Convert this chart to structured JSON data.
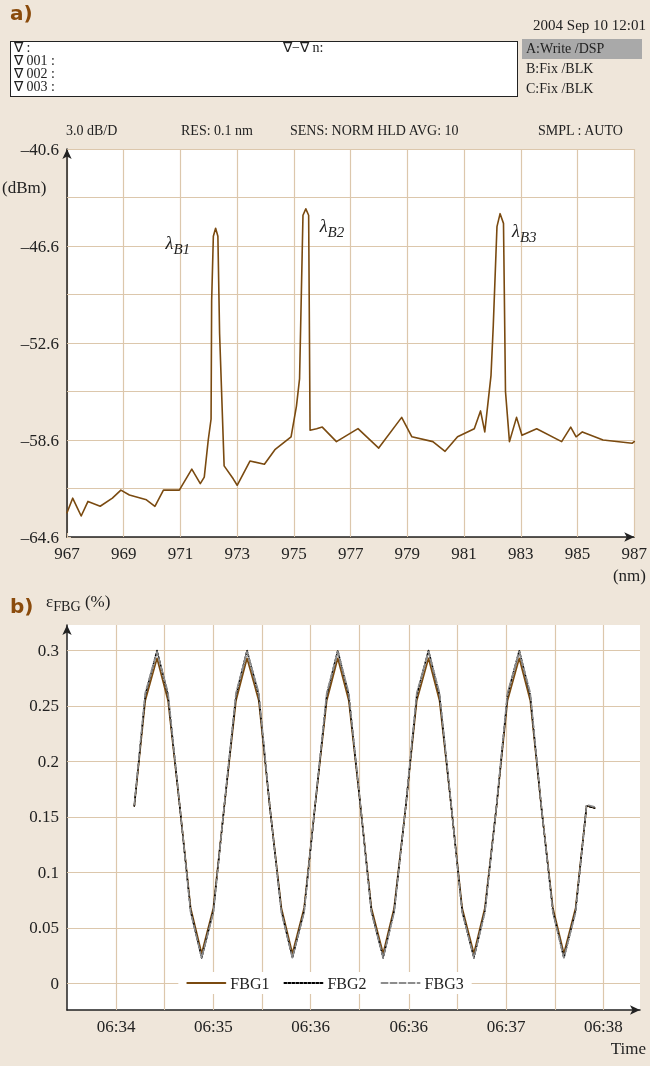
{
  "chart_data": [
    {
      "type": "line",
      "xlabel": "(nm)",
      "ylabel": "(dBm)",
      "marker": "none",
      "grid": true,
      "annotations": [
        "a)",
        "2004 Sep 10 12:01",
        "∇ :",
        "∇ 001 :",
        "∇ 002 :",
        "∇ 003 :",
        "∇−∇ n:",
        "A:Write /DSP",
        "B:Fix /BLK",
        "C:Fix /BLK",
        "3.0 dB/D",
        "RES: 0.1 nm",
        "SENS: NORM HLD AVG: 10",
        "SMPL : AUTO",
        {
          "text": "λ$_{B1}$",
          "x": 972.24,
          "y": -45.5
        },
        {
          "text": "λ$_{B2}$",
          "x": 975.42,
          "y": -44.3
        },
        {
          "text": "λ$_{B3}$",
          "x": 982.27,
          "y": -44.6
        }
      ],
      "xlim": [
        967,
        987
      ],
      "xticks": [
        967,
        969,
        971,
        973,
        975,
        977,
        979,
        981,
        983,
        985,
        987
      ],
      "ylim": [
        -64.6,
        -40.6
      ],
      "yticks": [
        {
          "value": -64.6,
          "label": "–64.6"
        },
        {
          "value": -61.6,
          "label": null
        },
        {
          "value": -58.6,
          "label": "–58.6"
        },
        {
          "value": -55.6,
          "label": null
        },
        {
          "value": -52.6,
          "label": "–52.6"
        },
        {
          "value": -49.6,
          "label": null
        },
        {
          "value": -46.6,
          "label": "–46.6"
        },
        {
          "value": -43.6,
          "label": null
        },
        {
          "value": -40.6,
          "label": "–40.6"
        }
      ],
      "x": [
        967.0,
        967.2,
        967.5,
        967.74,
        968.17,
        968.6,
        968.9,
        969.2,
        969.8,
        970.1,
        970.4,
        970.96,
        971.4,
        971.7,
        971.84,
        971.98,
        972.08,
        972.1,
        972.16,
        972.24,
        972.32,
        972.38,
        972.54,
        972.86,
        973.0,
        973.45,
        973.96,
        974.33,
        974.9,
        975.09,
        975.2,
        975.32,
        975.42,
        975.52,
        975.57,
        975.8,
        976.0,
        976.5,
        977.26,
        977.99,
        978.8,
        979.16,
        979.9,
        980.33,
        980.77,
        981.36,
        981.58,
        981.73,
        981.95,
        982.03,
        982.16,
        982.27,
        982.39,
        982.46,
        982.6,
        982.85,
        983.04,
        983.56,
        984.44,
        984.76,
        984.95,
        985.17,
        985.9,
        986.93,
        987.0
      ],
      "series": [
        {
          "color": "#7a4a10",
          "values": [
            -63.1,
            -62.2,
            -63.3,
            -62.4,
            -62.7,
            -62.2,
            -61.7,
            -62.0,
            -62.3,
            -62.7,
            -61.7,
            -61.7,
            -60.4,
            -61.3,
            -60.9,
            -58.6,
            -57.3,
            -50.0,
            -46.0,
            -45.5,
            -46.0,
            -52.0,
            -60.2,
            -61.0,
            -61.4,
            -59.9,
            -60.1,
            -59.2,
            -58.4,
            -56.5,
            -54.8,
            -44.7,
            -44.3,
            -44.7,
            -58.0,
            -57.9,
            -57.8,
            -58.7,
            -57.9,
            -59.1,
            -57.2,
            -58.4,
            -58.7,
            -59.3,
            -58.4,
            -57.9,
            -56.8,
            -58.1,
            -54.6,
            -51.5,
            -45.4,
            -44.6,
            -45.2,
            -55.6,
            -58.7,
            -57.2,
            -58.3,
            -57.9,
            -58.7,
            -57.8,
            -58.4,
            -58.1,
            -58.6,
            -58.8,
            -58.7
          ]
        }
      ]
    },
    {
      "type": "line",
      "xlabel": "Time",
      "ylabel": "ε$_{FBG}$ (%)",
      "marker": "none",
      "grid": true,
      "legend": "bottom",
      "annotations": [
        "b)"
      ],
      "xlim": [
        6.56,
        6.6383
      ],
      "xticks": [
        {
          "value": 6.5667,
          "label": "06:34"
        },
        {
          "value": 6.5733,
          "label": null
        },
        {
          "value": 6.58,
          "label": "06:35"
        },
        {
          "value": 6.5867,
          "label": null
        },
        {
          "value": 6.5933,
          "label": "06:36"
        },
        {
          "value": 6.6,
          "label": null
        },
        {
          "value": 6.6067,
          "label": "06:36"
        },
        {
          "value": 6.6133,
          "label": null
        },
        {
          "value": 6.62,
          "label": "06:37"
        },
        {
          "value": 6.6267,
          "label": null
        },
        {
          "value": 6.6333,
          "label": "06:38"
        }
      ],
      "ylim": [
        -0.024,
        0.323
      ],
      "yticks": [
        0,
        0.05,
        0.1,
        0.15,
        0.2,
        0.25,
        0.3
      ],
      "x": [
        6.5692,
        6.5707,
        6.5723,
        6.5738,
        6.5754,
        6.5769,
        6.5784,
        6.58,
        6.5815,
        6.5831,
        6.5846,
        6.5862,
        6.5877,
        6.5893,
        6.5908,
        6.5924,
        6.5939,
        6.5955,
        6.597,
        6.5985,
        6.6001,
        6.6016,
        6.6032,
        6.6047,
        6.6063,
        6.6078,
        6.6094,
        6.6109,
        6.6125,
        6.614,
        6.6156,
        6.6171,
        6.6187,
        6.6202,
        6.6218,
        6.6233,
        6.6248,
        6.6264,
        6.6279,
        6.6295,
        6.631,
        6.6321
      ],
      "series": [
        {
          "name": "FBG1",
          "color": "#7a4a10",
          "line_style": "solid",
          "values": [
            0.16,
            0.255,
            0.293,
            0.255,
            0.16,
            0.068,
            0.027,
            0.068,
            0.16,
            0.255,
            0.293,
            0.255,
            0.16,
            0.068,
            0.027,
            0.068,
            0.16,
            0.255,
            0.293,
            0.255,
            0.16,
            0.068,
            0.027,
            0.068,
            0.16,
            0.255,
            0.293,
            0.255,
            0.16,
            0.068,
            0.027,
            0.068,
            0.16,
            0.255,
            0.293,
            0.255,
            0.16,
            0.068,
            0.027,
            0.068,
            0.16,
            0.158
          ]
        },
        {
          "name": "FBG2",
          "color": "#000000",
          "line_style": "dotted",
          "values": [
            0.16,
            0.26,
            0.3,
            0.26,
            0.16,
            0.065,
            0.023,
            0.065,
            0.16,
            0.26,
            0.3,
            0.26,
            0.16,
            0.065,
            0.023,
            0.065,
            0.16,
            0.26,
            0.3,
            0.26,
            0.16,
            0.065,
            0.023,
            0.065,
            0.16,
            0.26,
            0.3,
            0.26,
            0.16,
            0.065,
            0.023,
            0.065,
            0.16,
            0.26,
            0.3,
            0.26,
            0.16,
            0.065,
            0.023,
            0.065,
            0.16,
            0.158
          ]
        },
        {
          "name": "FBG3",
          "color": "#8c8c8c",
          "line_style": "dashed",
          "values": [
            0.161,
            0.262,
            0.299,
            0.262,
            0.161,
            0.064,
            0.023,
            0.064,
            0.161,
            0.262,
            0.299,
            0.262,
            0.161,
            0.064,
            0.023,
            0.064,
            0.161,
            0.262,
            0.299,
            0.262,
            0.161,
            0.064,
            0.023,
            0.064,
            0.161,
            0.262,
            0.299,
            0.262,
            0.161,
            0.064,
            0.023,
            0.064,
            0.161,
            0.262,
            0.299,
            0.262,
            0.161,
            0.064,
            0.023,
            0.064,
            0.161,
            0.159
          ]
        }
      ]
    }
  ]
}
